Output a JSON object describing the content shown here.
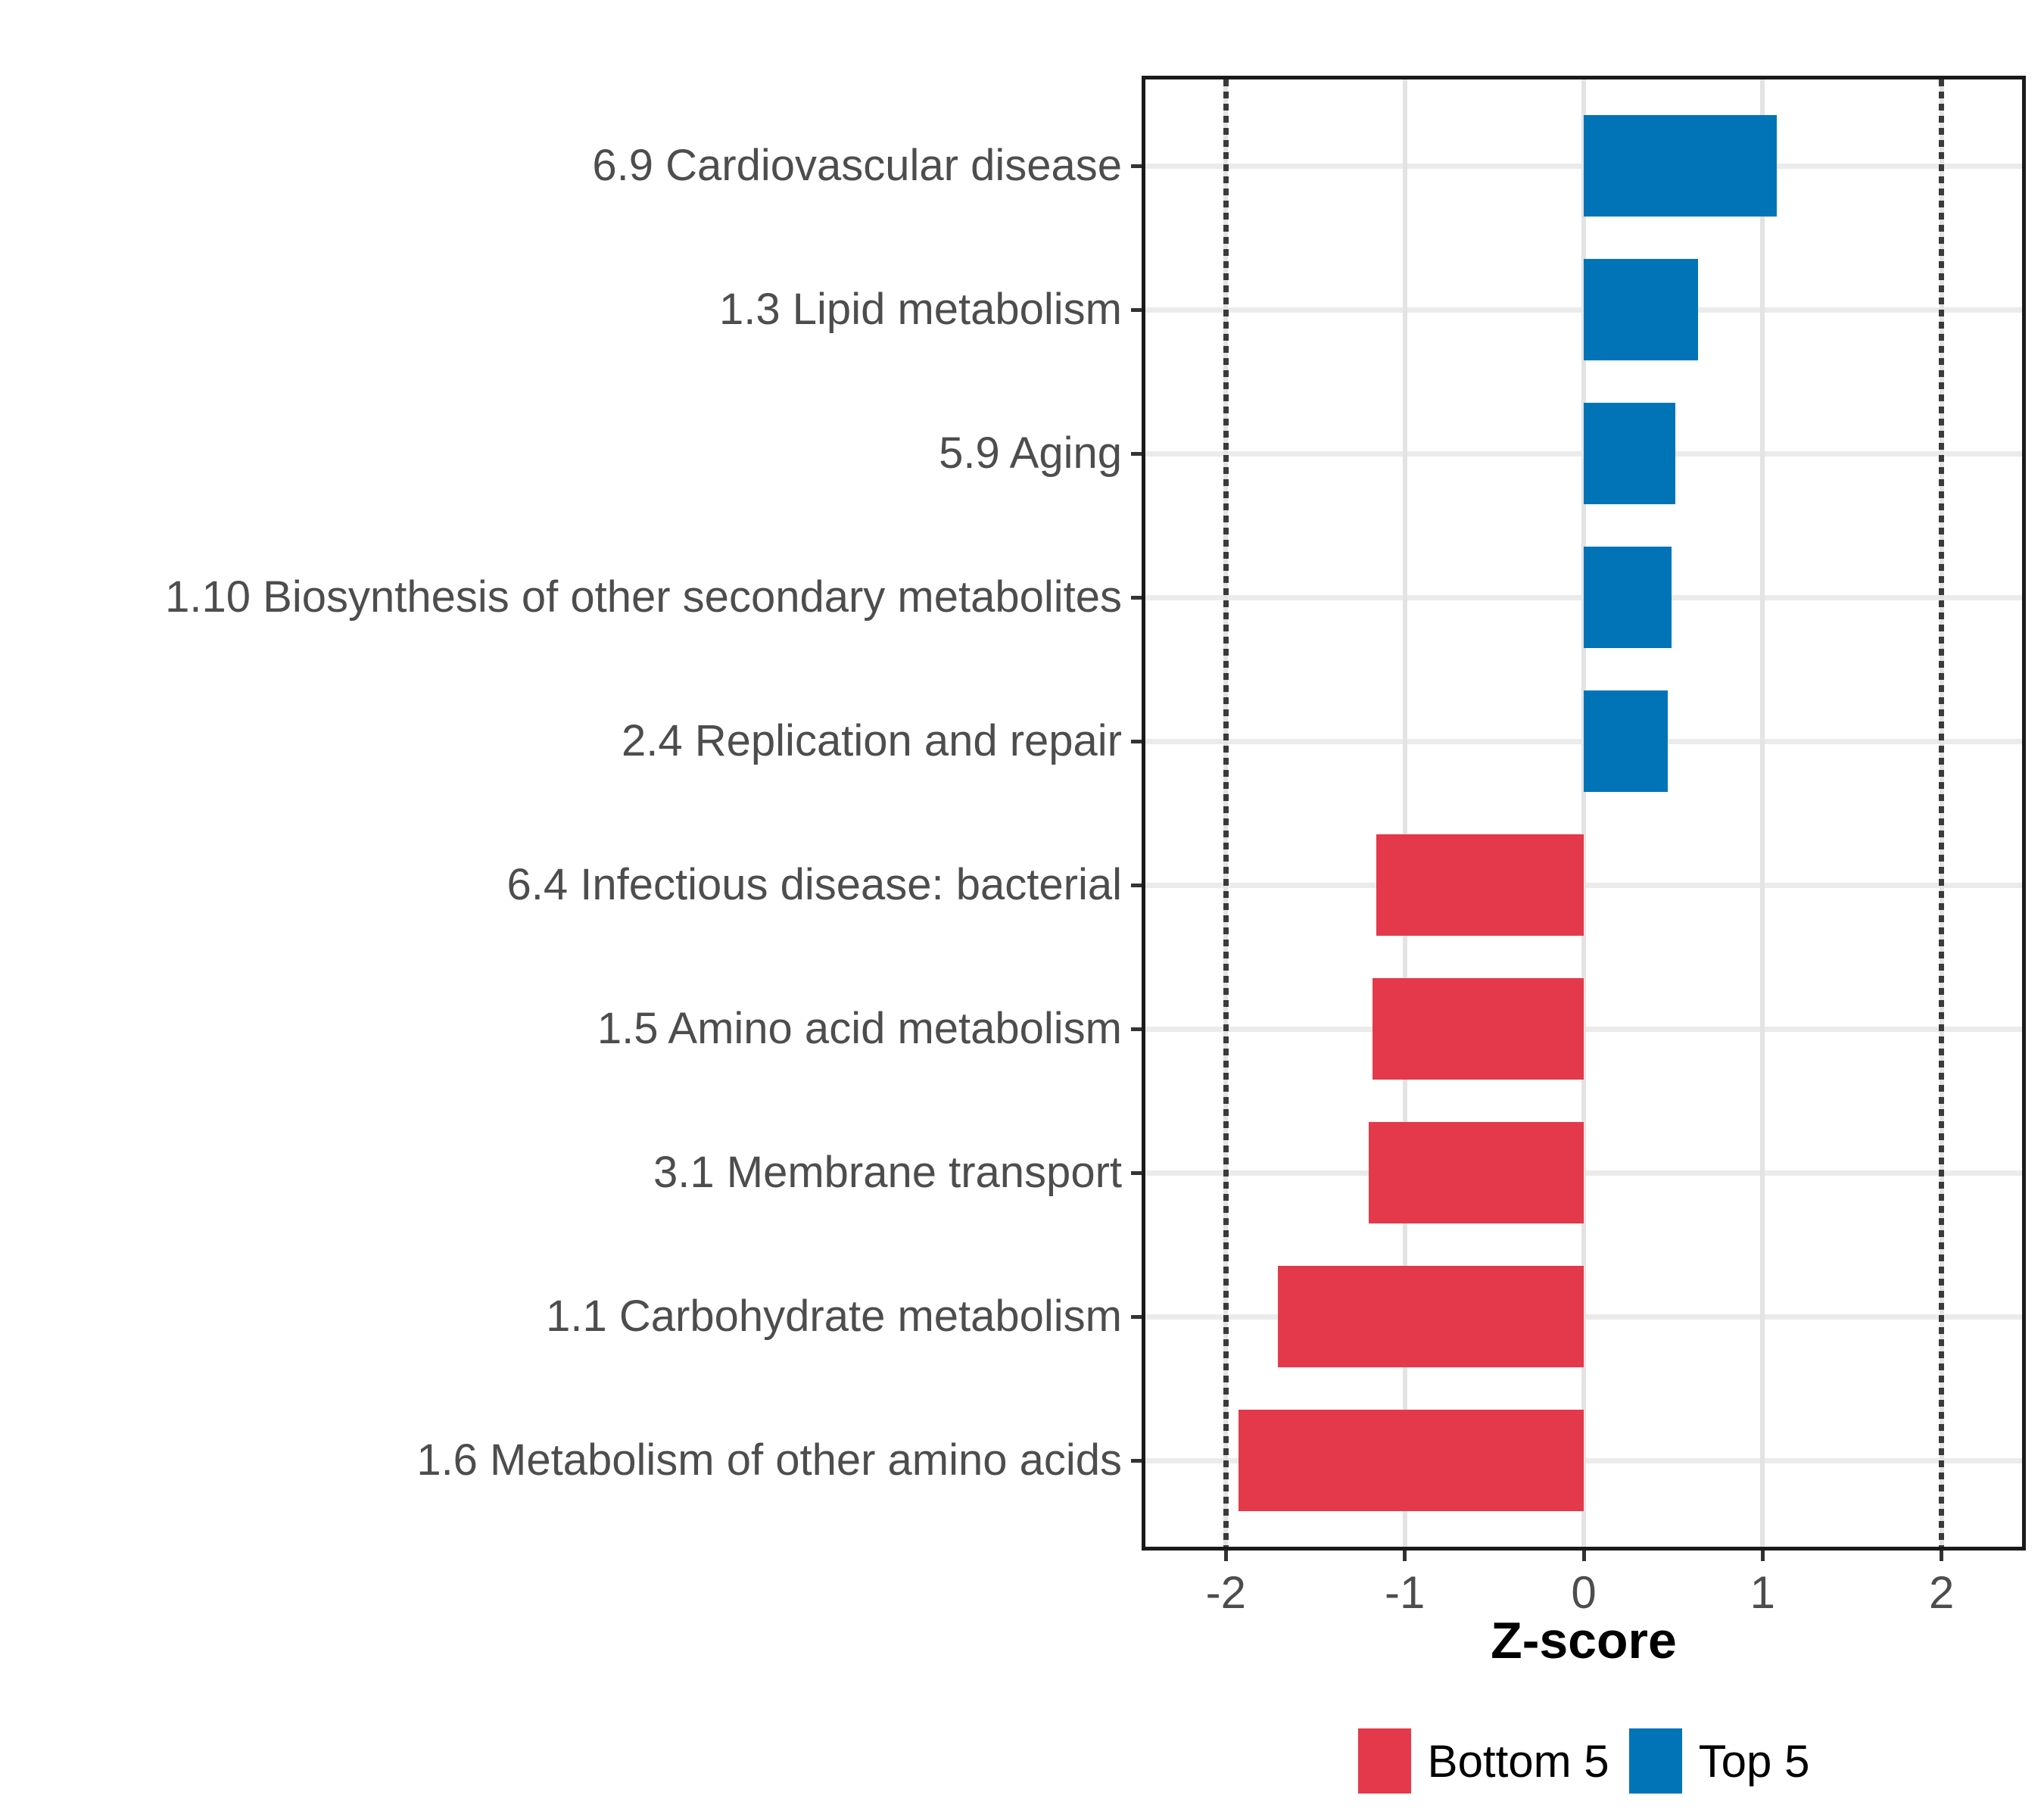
{
  "chart_data": {
    "type": "bar",
    "orientation": "horizontal",
    "xlabel": "Z-score",
    "categories": [
      "6.9 Cardiovascular disease",
      "1.3 Lipid metabolism",
      "5.9 Aging",
      "1.10 Biosynthesis of other secondary metabolites",
      "2.4 Replication and repair",
      "6.4 Infectious disease: bacterial",
      "1.5 Amino acid metabolism",
      "3.1 Membrane transport",
      "1.1 Carbohydrate metabolism",
      "1.6 Metabolism of other amino acids"
    ],
    "values": [
      1.08,
      0.64,
      0.51,
      0.49,
      0.47,
      -1.16,
      -1.18,
      -1.2,
      -1.71,
      -1.93
    ],
    "groups": [
      "Top 5",
      "Top 5",
      "Top 5",
      "Top 5",
      "Top 5",
      "Bottom 5",
      "Bottom 5",
      "Bottom 5",
      "Bottom 5",
      "Bottom 5"
    ],
    "x_ticks": [
      "-2",
      "-1",
      "0",
      "1",
      "2"
    ],
    "x_tick_values": [
      -2,
      -1,
      0,
      1,
      2
    ],
    "xlim": [
      -2.45,
      2.45
    ],
    "reference_lines": [
      -2,
      2
    ],
    "grid": "major-only",
    "legend_position": "bottom",
    "legend": [
      {
        "label": "Bottom 5",
        "color": "#e4394a"
      },
      {
        "label": "Top 5",
        "color": "#0074b6"
      }
    ],
    "colors": {
      "bottom5": "#e4394a",
      "top5": "#0074b6",
      "gridline": "#ebebeb",
      "reference_line": "#3a3a3a",
      "axis_text": "#4d4d4d",
      "panel_border": "#1a1a1a"
    }
  }
}
